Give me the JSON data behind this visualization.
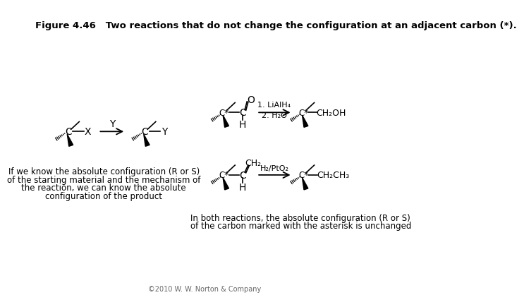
{
  "title": "Figure 4.46   Two reactions that do not change the configuration at an adjacent carbon (*).",
  "title_fontsize": 9.5,
  "copyright": "©2010 W. W. Norton & Company",
  "background_color": "#ffffff",
  "left_caption": [
    "If we know the absolute configuration (R or S)",
    "of the starting material and the mechanism of",
    "the reaction, we can know the absolute",
    "configuration of the product"
  ],
  "right_caption": [
    "In both reactions, the absolute configuration (R or S)",
    "of the carbon marked with the asterisk is unchanged"
  ]
}
